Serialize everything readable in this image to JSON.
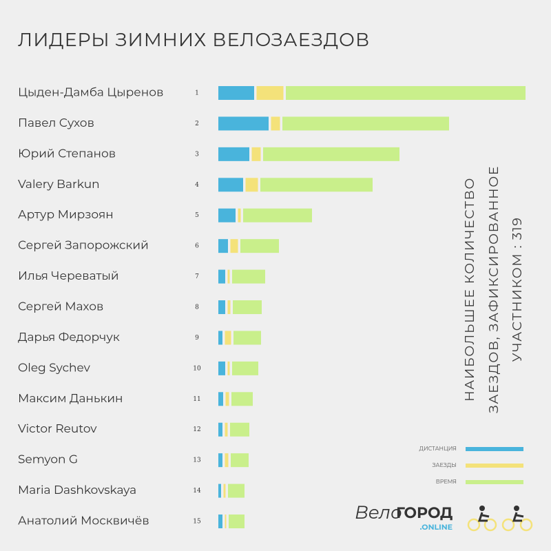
{
  "chart_data": {
    "type": "bar",
    "orientation": "horizontal",
    "stacked": true,
    "title": "ЛИДЕРЫ ЗИМНИХ ВЕЛОЗАЕЗДОВ",
    "categories": [
      "Цыден-Дамба Цыренов",
      "Павел Сухов",
      "Юрий Степанов",
      "Valery Barkun",
      "Артур Мирзоян",
      "Сергей Запорожский",
      "Илья Череватый",
      "Сергей Махов",
      "Дарья Федорчук",
      "Oleg Sychev",
      "Максим Данькин",
      "Victor Reutov",
      "Semyon G",
      "Maria Dashkovskaya",
      "Анатолий Москвичёв"
    ],
    "ranks": [
      1,
      2,
      3,
      4,
      5,
      6,
      7,
      8,
      9,
      10,
      11,
      12,
      13,
      14,
      15
    ],
    "series": [
      {
        "name": "ДИСТАНЦИЯ",
        "color": "#49b4dc",
        "values": [
          52,
          73,
          45,
          36,
          25,
          14,
          10,
          10,
          6,
          10,
          7,
          6,
          6,
          4,
          6
        ]
      },
      {
        "name": "ЗАЕЗДЫ",
        "color": "#f4e27a",
        "values": [
          39,
          13,
          13,
          18,
          4,
          11,
          3,
          4,
          9,
          3,
          5,
          4,
          5,
          3,
          2
        ]
      },
      {
        "name": "ВРЕМЯ",
        "color": "#c9ef8b",
        "values": [
          348,
          242,
          198,
          163,
          100,
          56,
          48,
          42,
          40,
          38,
          31,
          28,
          26,
          24,
          23
        ]
      }
    ],
    "annotation": [
      "НАИБОЛЬШЕЕ КОЛИЧЕСТВО",
      "ЗАЕЗДОВ, ЗАФИКСИРОВАННОЕ",
      "УЧАСТНИКОМ : 319"
    ]
  },
  "logo": {
    "part1": "Вело",
    "part2": "ГОРОД",
    "part3": ".ONLINE"
  }
}
